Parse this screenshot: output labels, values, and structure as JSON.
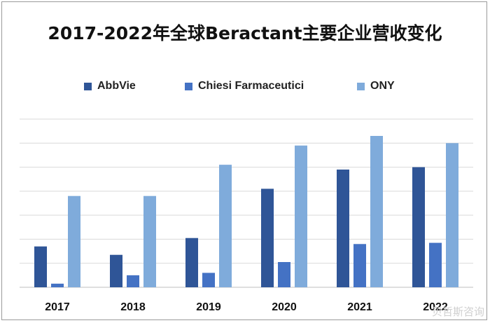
{
  "chart_data": {
    "type": "bar",
    "title": "2017-2022年全球Beractant主要企业营收变化",
    "categories": [
      "2017",
      "2018",
      "2019",
      "2020",
      "2021",
      "2022"
    ],
    "series": [
      {
        "name": "AbbVie",
        "color": "#2F5597",
        "values": [
          1.7,
          1.35,
          2.05,
          4.1,
          4.9,
          5.0
        ]
      },
      {
        "name": "Chiesi Farmaceutici",
        "color": "#4472C4",
        "values": [
          0.15,
          0.5,
          0.6,
          1.05,
          1.8,
          1.85
        ]
      },
      {
        "name": "ONY",
        "color": "#7FABDB",
        "values": [
          3.8,
          3.8,
          5.1,
          5.9,
          6.3,
          6.0
        ]
      }
    ],
    "ylim": [
      0,
      7
    ],
    "grid": true,
    "legend_position": "top"
  },
  "watermark": "贝哲斯咨询"
}
